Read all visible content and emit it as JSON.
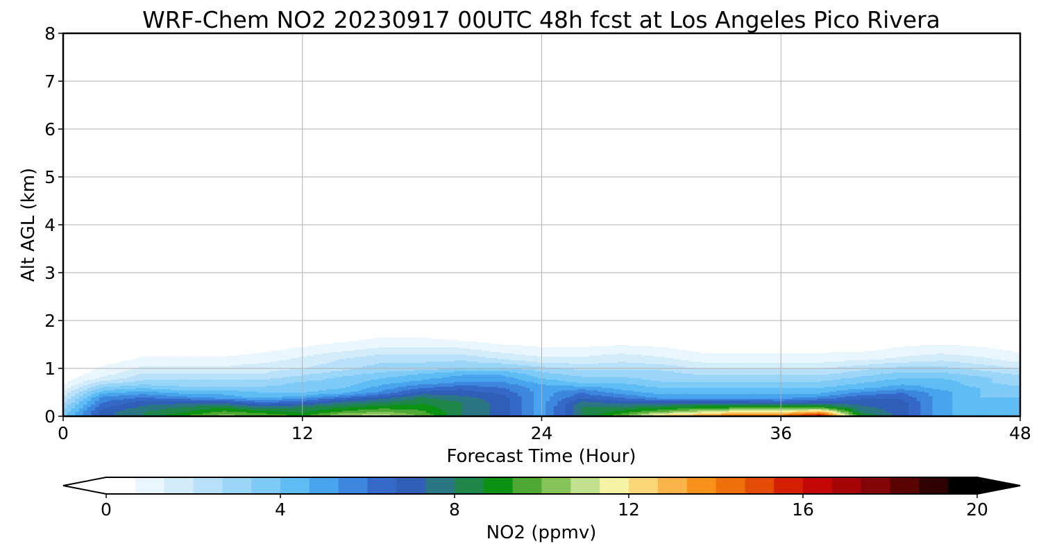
{
  "chart_data": {
    "type": "heatmap",
    "title": "WRF-Chem NO2  20230917 00UTC 48h fcst at Los Angeles Pico Rivera",
    "xlabel": "Forecast Time (Hour)",
    "ylabel": "Alt AGL (km)",
    "xlim": [
      0,
      48
    ],
    "ylim": [
      0,
      8
    ],
    "xticks": [
      "0",
      "12",
      "24",
      "36",
      "48"
    ],
    "yticks": [
      "0",
      "1",
      "2",
      "3",
      "4",
      "5",
      "6",
      "7",
      "8"
    ],
    "grid": true,
    "colorbar": {
      "label": "NO2  (ppmv)",
      "range": [
        0,
        20
      ],
      "ticks": [
        "0",
        "4",
        "8",
        "12",
        "16",
        "20"
      ],
      "extend": "both",
      "colors": [
        "#ffffff",
        "#eaf6fd",
        "#d3ecfa",
        "#b9e1f9",
        "#9bd5f7",
        "#7ecbf7",
        "#5fbdf4",
        "#48a4ec",
        "#3d86dd",
        "#3569c8",
        "#2f5fb7",
        "#2a7682",
        "#1e8648",
        "#0c9213",
        "#4ea834",
        "#86c45a",
        "#c2e08e",
        "#f5f4a4",
        "#fbd877",
        "#fbb44a",
        "#f8921b",
        "#ef6f08",
        "#e44c04",
        "#d41f03",
        "#c20704",
        "#a50404",
        "#820404",
        "#5a0303",
        "#2e0101",
        "#000000"
      ],
      "over_color": "#000000",
      "under_color": "#ffffff"
    },
    "x": [
      0,
      2,
      4,
      6,
      8,
      10,
      12,
      14,
      16,
      18,
      20,
      22,
      24,
      26,
      28,
      30,
      32,
      34,
      36,
      38,
      40,
      42,
      44,
      46,
      48
    ],
    "y": [
      0,
      0.1,
      0.2,
      0.3,
      0.4,
      0.5,
      0.6,
      0.7,
      0.8,
      0.9,
      1.0,
      1.2,
      1.4,
      1.6,
      1.8,
      2.0,
      2.5,
      3.0,
      3.5,
      4.0,
      5.0,
      6.0,
      7.0,
      8.0
    ],
    "z": [
      [
        4,
        7,
        8,
        9.5,
        10.5,
        10,
        9.5,
        11,
        11.5,
        10,
        8,
        7,
        5,
        8,
        10,
        13,
        14,
        15,
        15,
        17,
        9,
        7,
        5,
        4,
        4
      ],
      [
        3.5,
        7,
        8,
        8.5,
        9.5,
        9,
        8.5,
        9.5,
        10,
        9.5,
        8,
        7,
        5,
        8,
        9,
        10,
        11,
        12,
        12,
        13,
        8,
        7,
        5,
        4,
        4
      ],
      [
        3,
        6.5,
        7.5,
        8,
        8.5,
        7.5,
        8,
        8.5,
        9,
        9,
        8,
        7,
        5,
        8,
        8,
        8.5,
        9,
        9,
        9,
        9,
        7.5,
        7,
        5,
        4,
        4
      ],
      [
        2.5,
        6,
        7,
        7,
        7,
        6,
        6.5,
        7.5,
        8,
        8.5,
        8,
        7,
        5,
        7.5,
        7,
        7,
        7,
        7,
        6.5,
        7,
        7,
        7,
        5,
        4,
        4
      ],
      [
        2,
        5.5,
        6,
        5.5,
        5,
        4.5,
        5,
        6,
        7,
        8,
        7.5,
        7,
        5,
        6.5,
        6,
        5,
        5,
        5,
        5,
        5.5,
        6.5,
        6.5,
        5,
        4,
        4
      ],
      [
        1.5,
        4.5,
        5,
        4.5,
        4.5,
        4,
        4,
        4.5,
        5.5,
        7,
        7,
        6.5,
        5,
        6,
        5,
        4.5,
        4.5,
        4.5,
        4.5,
        4.5,
        5.5,
        6,
        5,
        4,
        3.5
      ],
      [
        1,
        3.5,
        4,
        3.5,
        3.5,
        3.5,
        3.5,
        4,
        5,
        6,
        6.5,
        6,
        5,
        5,
        4.5,
        4,
        4,
        4,
        4,
        4,
        4.5,
        5,
        4.5,
        4,
        3.5
      ],
      [
        0.5,
        2.5,
        3,
        3,
        3,
        3,
        3.5,
        3.5,
        4.5,
        5,
        5.5,
        5.5,
        4.5,
        4,
        4,
        3.5,
        3.5,
        3.5,
        3.5,
        3.5,
        4,
        4.5,
        4.5,
        3.5,
        3
      ],
      [
        0.3,
        1.5,
        2.5,
        2.5,
        2.5,
        2.5,
        3,
        3.5,
        4,
        4.5,
        5,
        5,
        4,
        3.5,
        3.5,
        3,
        3,
        3,
        3,
        3,
        3.5,
        4,
        4,
        3.5,
        3
      ],
      [
        0.2,
        1,
        2,
        2,
        2,
        2,
        2.5,
        3,
        3.5,
        4,
        4.5,
        4.5,
        3.5,
        3,
        3,
        3,
        2.5,
        2.5,
        2.5,
        2.5,
        3,
        3.5,
        3.5,
        3,
        2.5
      ],
      [
        0.1,
        0.8,
        1.5,
        1.5,
        1.5,
        1.8,
        2,
        2.5,
        3,
        3,
        3.5,
        3.5,
        3,
        2.5,
        2.5,
        2.5,
        2,
        2,
        2,
        2,
        2.5,
        3,
        3,
        2.5,
        2
      ],
      [
        0,
        0.3,
        0.8,
        0.8,
        0.8,
        1,
        1.5,
        2,
        2.5,
        2.5,
        2.5,
        2,
        1.5,
        1.5,
        1.8,
        1.5,
        1,
        1,
        1,
        1,
        1.2,
        1.5,
        1.8,
        1.5,
        1
      ],
      [
        0,
        0.1,
        0.3,
        0.3,
        0.3,
        0.5,
        0.8,
        1.2,
        1.5,
        1.5,
        1.5,
        1,
        0.8,
        0.8,
        1,
        0.8,
        0.5,
        0.5,
        0.5,
        0.5,
        0.5,
        0.8,
        1,
        0.8,
        0.5
      ],
      [
        0,
        0,
        0.1,
        0.1,
        0.1,
        0.2,
        0.3,
        0.5,
        0.8,
        0.8,
        0.6,
        0.4,
        0.3,
        0.3,
        0.3,
        0.3,
        0.2,
        0.2,
        0.2,
        0.2,
        0.2,
        0.3,
        0.4,
        0.3,
        0.2
      ],
      [
        0,
        0,
        0,
        0,
        0,
        0,
        0.1,
        0.2,
        0.3,
        0.3,
        0.2,
        0.1,
        0.1,
        0.1,
        0.1,
        0.1,
        0.1,
        0.1,
        0.1,
        0.1,
        0.1,
        0.1,
        0.1,
        0.1,
        0.1
      ],
      [
        0,
        0,
        0,
        0,
        0,
        0,
        0,
        0.1,
        0.1,
        0.1,
        0.1,
        0,
        0,
        0,
        0,
        0,
        0,
        0,
        0,
        0,
        0,
        0,
        0,
        0,
        0
      ],
      [
        0,
        0,
        0.1,
        0.1,
        0,
        0,
        0,
        0,
        0,
        0,
        0,
        0,
        0,
        0,
        0,
        0,
        0,
        0,
        0,
        0,
        0,
        0,
        0,
        0,
        0
      ],
      [
        0,
        0,
        0.2,
        0.2,
        0,
        0,
        0,
        0,
        0,
        0,
        0,
        0,
        0,
        0,
        0,
        0,
        0,
        0,
        0,
        0,
        0,
        0,
        0,
        0,
        0
      ],
      [
        0,
        0,
        0.1,
        0.1,
        0,
        0,
        0,
        0,
        0,
        0,
        0,
        0,
        0,
        0,
        0,
        0,
        0,
        0,
        0,
        0,
        0,
        0,
        0,
        0,
        0
      ],
      [
        0,
        0,
        0,
        0,
        0,
        0,
        0,
        0,
        0,
        0,
        0,
        0,
        0,
        0,
        0,
        0,
        0,
        0,
        0,
        0,
        0,
        0,
        0,
        0,
        0
      ],
      [
        0,
        0,
        0,
        0,
        0,
        0,
        0,
        0,
        0,
        0,
        0,
        0,
        0,
        0,
        0,
        0,
        0,
        0,
        0,
        0,
        0,
        0,
        0,
        0,
        0
      ],
      [
        0,
        0,
        0,
        0,
        0,
        0,
        0,
        0,
        0,
        0,
        0,
        0,
        0,
        0,
        0,
        0,
        0,
        0,
        0,
        0,
        0,
        0,
        0,
        0,
        0
      ],
      [
        0,
        0,
        0,
        0,
        0,
        0,
        0,
        0,
        0,
        0,
        0,
        0,
        0,
        0,
        0,
        0,
        0,
        0,
        0,
        0,
        0,
        0,
        0,
        0,
        0
      ],
      [
        0,
        0,
        0,
        0,
        0,
        0,
        0,
        0,
        0,
        0,
        0,
        0,
        0,
        0,
        0,
        0,
        0,
        0,
        0,
        0,
        0,
        0,
        0,
        0,
        0
      ]
    ]
  }
}
